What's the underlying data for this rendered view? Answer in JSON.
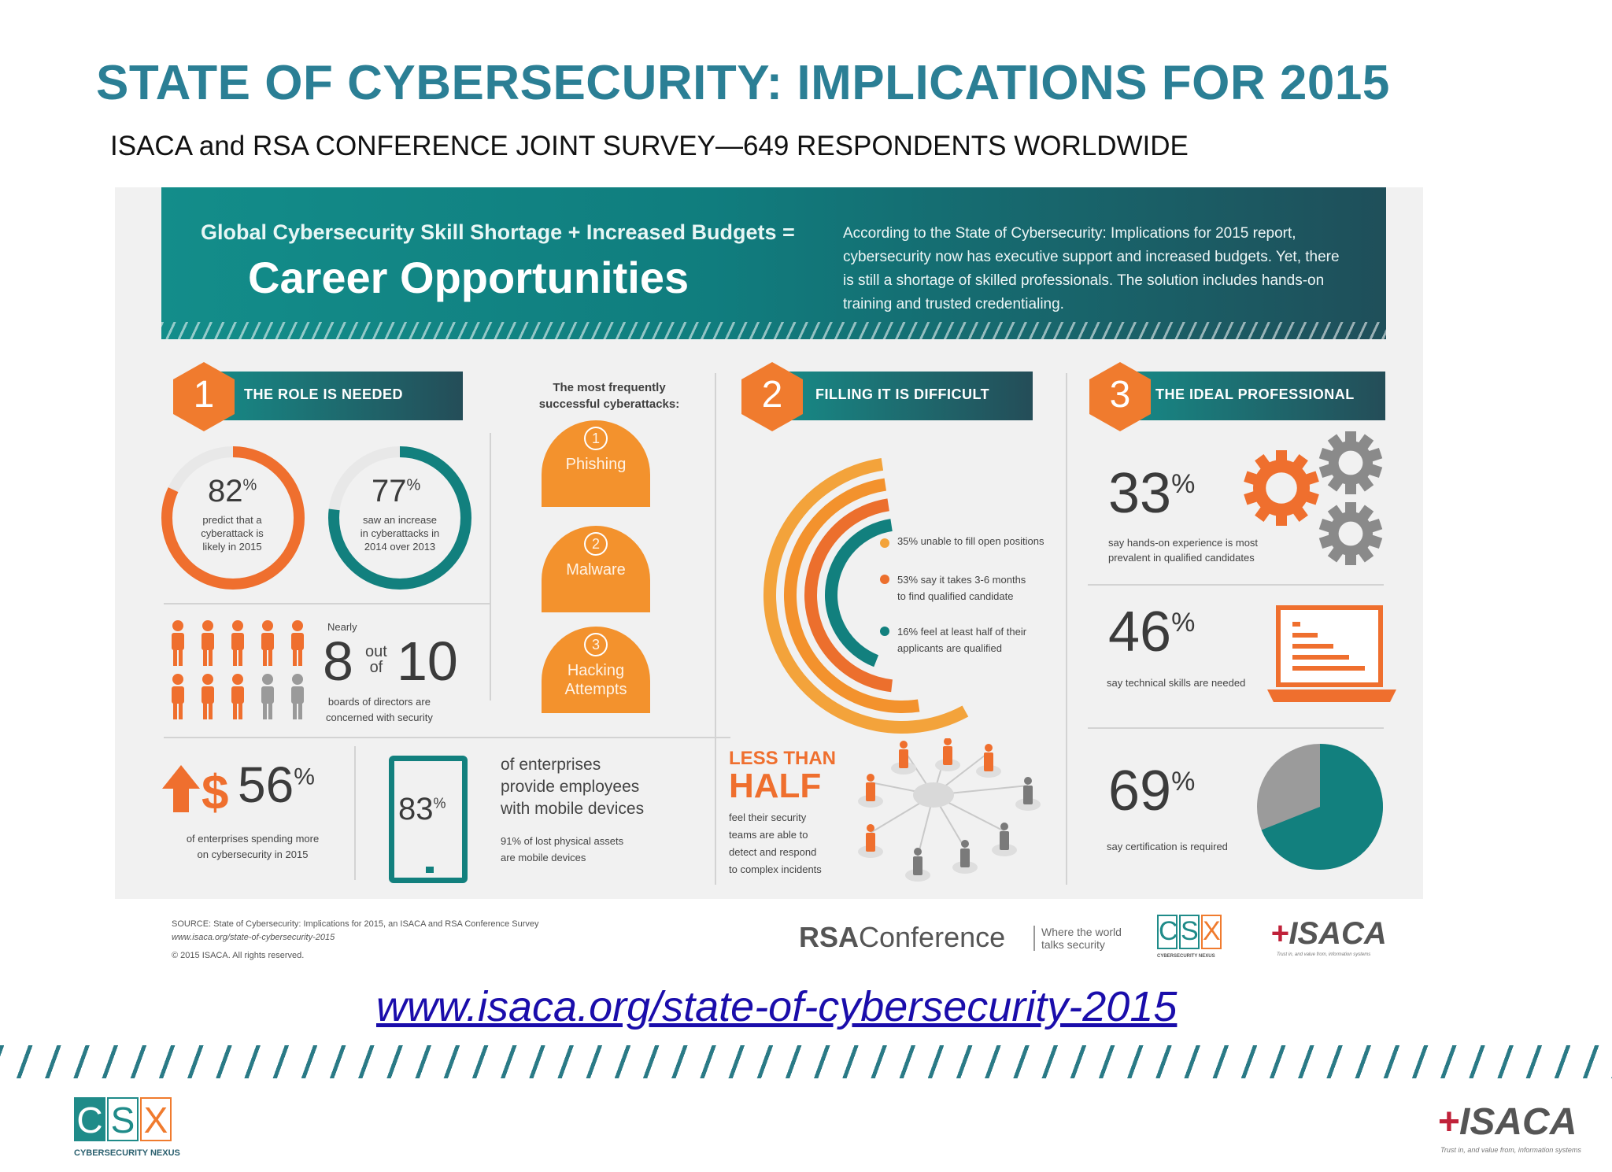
{
  "slide": {
    "title": "STATE OF CYBERSECURITY: IMPLICATIONS FOR 2015",
    "subtitle": "ISACA and RSA CONFERENCE JOINT SURVEY—649 RESPONDENTS WORLDWIDE",
    "link": "www.isaca.org/state-of-cybersecurity-2015"
  },
  "banner": {
    "small": "Global Cybersecurity Skill Shortage + Increased Budgets =",
    "big": "Career Opportunities",
    "desc": "According to the State of Cybersecurity: Implications for 2015 report, cybersecurity now has executive support and increased budgets. Yet, there is still a shortage of skilled professionals. The solution includes hands-on training and trusted credentialing."
  },
  "sections": [
    {
      "num": "1",
      "label": "THE ROLE IS NEEDED"
    },
    {
      "num": "2",
      "label": "FILLING IT IS DIFFICULT"
    },
    {
      "num": "3",
      "label": "THE IDEAL PROFESSIONAL"
    }
  ],
  "role": {
    "stat1": {
      "value": "82",
      "suffix": "%",
      "text1": "predict that a",
      "text2": "cyberattack is",
      "text3": "likely in 2015",
      "fraction": 0.82
    },
    "stat2": {
      "value": "77",
      "suffix": "%",
      "text1": "saw an increase",
      "text2": "in cyberattacks in",
      "text3": "2014 over 2013",
      "fraction": 0.77
    },
    "boards": {
      "nearly": "Nearly",
      "num": "8",
      "out": "out",
      "of": "of",
      "den": "10",
      "text1": "boards of directors are",
      "text2": "concerned with security",
      "highlighted": 8,
      "total": 10
    },
    "spend": {
      "value": "56",
      "suffix": "%",
      "text1": "of enterprises spending more",
      "text2": "on cybersecurity in 2015"
    },
    "mobile": {
      "value": "83",
      "suffix": "%",
      "text1": "of enterprises",
      "text2": "provide employees",
      "text3": "with mobile devices",
      "text4": "91% of lost physical assets",
      "text5": "are mobile devices"
    }
  },
  "attacks": {
    "heading1": "The most frequently",
    "heading2": "successful cyberattacks:",
    "items": [
      {
        "num": "1",
        "line1": "Phishing",
        "line2": ""
      },
      {
        "num": "2",
        "line1": "Malware",
        "line2": ""
      },
      {
        "num": "3",
        "line1": "Hacking",
        "line2": "Attempts"
      }
    ]
  },
  "filling": {
    "legend": [
      {
        "line1": "35% unable to fill open positions",
        "line2": "",
        "color": "#f3a33b",
        "fraction": 0.35
      },
      {
        "line1": "53% say it takes 3-6 months",
        "line2": "to find qualified candidate",
        "color": "#ec6f2d",
        "fraction": 0.53
      },
      {
        "line1": "16% feel at least half of their",
        "line2": "applicants are qualified",
        "color": "#12807e",
        "fraction": 0.16
      }
    ],
    "less1": "LESS THAN",
    "less2": "HALF",
    "text1": "feel their security",
    "text2": "teams are able to",
    "text3": "detect and respond",
    "text4": "to complex incidents"
  },
  "ideal": {
    "stat1": {
      "value": "33",
      "suffix": "%",
      "text1": "say hands-on experience is most",
      "text2": "prevalent in qualified candidates"
    },
    "stat2": {
      "value": "46",
      "suffix": "%",
      "text1": "say technical skills are needed"
    },
    "stat3": {
      "value": "69",
      "suffix": "%",
      "text1": "say certification is required",
      "fraction": 0.69
    }
  },
  "footer": {
    "src1": "SOURCE: State of Cybersecurity: Implications for 2015, an ISACA and RSA Conference Survey",
    "src2": "www.isaca.org/state-of-cybersecurity-2015",
    "src3": "© 2015 ISACA. All rights reserved.",
    "rsa1": "RSA",
    "rsa2": "Conference",
    "rsa_tag1": "Where the world",
    "rsa_tag2": "talks security",
    "csx": [
      "C",
      "S",
      "X"
    ],
    "csx_caption": "CYBERSECURITY NEXUS",
    "isaca": "ISACA",
    "isaca_tag": "Trust in, and value from, information systems"
  },
  "colors": {
    "teal": "#138d8a",
    "orange": "#f07b2e",
    "title": "#2b7f95",
    "link": "#1a0dab"
  }
}
